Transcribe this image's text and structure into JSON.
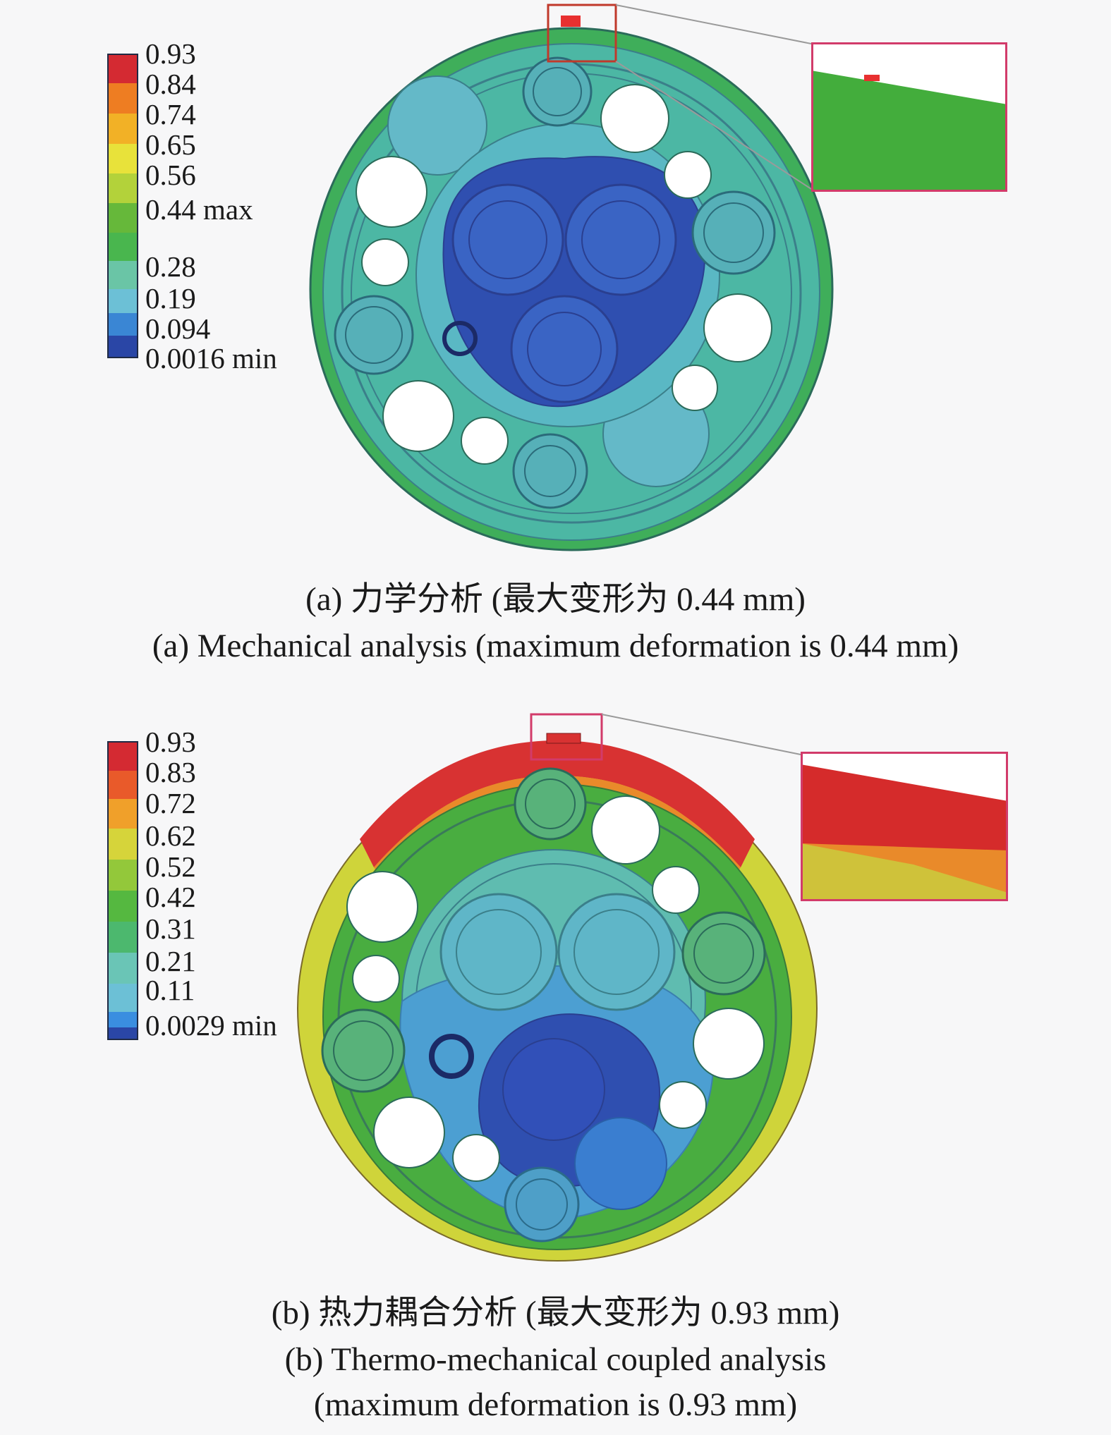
{
  "panel_a": {
    "legend": {
      "labels": [
        "0.93",
        "0.84",
        "0.74",
        "0.65",
        "0.56",
        "0.44 max",
        "0.28",
        "0.19",
        "0.094",
        "0.0016 min"
      ],
      "colors": [
        "#d42a32",
        "#ee7d22",
        "#f2b126",
        "#e8e23a",
        "#b3d23a",
        "#66b83a",
        "#49b64e",
        "#6ac5a6",
        "#6cc0d6",
        "#3a86d4",
        "#2a46a6"
      ]
    },
    "caption_zh": "(a) 力学分析 (最大变形为 0.44 mm)",
    "caption_en": "(a) Mechanical analysis (maximum deformation is 0.44 mm)"
  },
  "panel_b": {
    "legend": {
      "labels": [
        "0.93",
        "0.83",
        "0.72",
        "0.62",
        "0.52",
        "0.42",
        "0.31",
        "0.21",
        "0.11",
        "0.0029 min"
      ],
      "colors": [
        "#d42a32",
        "#e95a2a",
        "#f0a02a",
        "#d6d43a",
        "#93c83a",
        "#55b840",
        "#4cb86e",
        "#6ac5b6",
        "#6cc0d6",
        "#3a8ee0",
        "#2a46a6"
      ]
    },
    "caption_zh": "(b) 热力耦合分析 (最大变形为 0.93 mm)",
    "caption_en_line1": "(b) Thermo-mechanical coupled analysis",
    "caption_en_line2": "(maximum deformation is 0.93 mm)"
  }
}
